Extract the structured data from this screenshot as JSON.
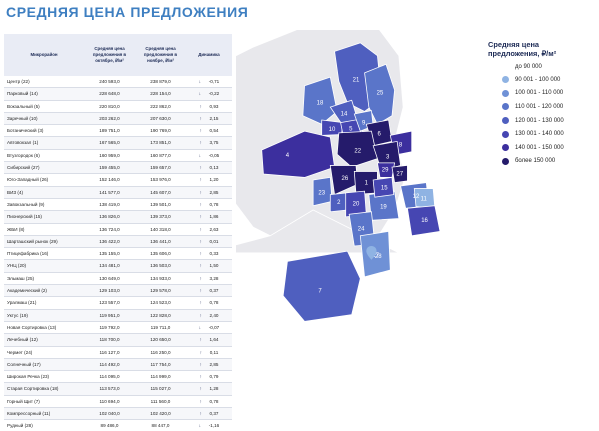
{
  "title": "Средняя цена предложения",
  "table": {
    "headers": {
      "district": "Микрорайон",
      "oct": "Средняя цена предложения в октябре, ₽/м²",
      "nov": "Средняя цена предложения в ноябре, ₽/м²",
      "dyn": "Динамика"
    },
    "rows": [
      {
        "name": "Центр (22)",
        "oct": "240 593,0",
        "nov": "238 879,0",
        "arrow": "↓",
        "dyn": "-0,71"
      },
      {
        "name": "Парковый (14)",
        "oct": "228 648,0",
        "nov": "228 154,0",
        "arrow": "↓",
        "dyn": "-0,22"
      },
      {
        "name": "Вокзальный (5)",
        "oct": "220 810,0",
        "nov": "222 862,0",
        "arrow": "↑",
        "dyn": "0,93"
      },
      {
        "name": "Заречный (10)",
        "oct": "203 262,0",
        "nov": "207 630,0",
        "arrow": "↑",
        "dyn": "2,15"
      },
      {
        "name": "Ботанический (3)",
        "oct": "189 751,0",
        "nov": "190 769,0",
        "arrow": "↑",
        "dyn": "0,54"
      },
      {
        "name": "Автовокзал (1)",
        "oct": "167 565,0",
        "nov": "173 851,0",
        "arrow": "↑",
        "dyn": "3,75"
      },
      {
        "name": "Втузгородок (6)",
        "oct": "160 959,0",
        "nov": "160 877,0",
        "arrow": "↓",
        "dyn": "-0,05"
      },
      {
        "name": "Сибирский (27)",
        "oct": "159 455,0",
        "nov": "159 657,0",
        "arrow": "↑",
        "dyn": "0,13"
      },
      {
        "name": "Юго-Западный (26)",
        "oct": "152 146,0",
        "nov": "153 976,0",
        "arrow": "↑",
        "dyn": "1,20"
      },
      {
        "name": "ВИЗ (4)",
        "oct": "141 577,0",
        "nov": "145 607,0",
        "arrow": "↑",
        "dyn": "2,85"
      },
      {
        "name": "Завокзальный (9)",
        "oct": "138 419,0",
        "nov": "139 501,0",
        "arrow": "↑",
        "dyn": "0,78"
      },
      {
        "name": "Пионерский (15)",
        "oct": "136 826,0",
        "nov": "139 373,0",
        "arrow": "↑",
        "dyn": "1,86"
      },
      {
        "name": "ЖБИ (8)",
        "oct": "136 724,0",
        "nov": "140 318,0",
        "arrow": "↑",
        "dyn": "2,63"
      },
      {
        "name": "Шарташский рынок (29)",
        "oct": "136 422,0",
        "nov": "136 441,0",
        "arrow": "↑",
        "dyn": "0,01"
      },
      {
        "name": "Птицефабрика (16)",
        "oct": "135 155,0",
        "nov": "135 606,0",
        "arrow": "↑",
        "dyn": "0,33"
      },
      {
        "name": "УНЦ (20)",
        "oct": "134 481,0",
        "nov": "136 503,0",
        "arrow": "↑",
        "dyn": "1,50"
      },
      {
        "name": "Эльмаш (25)",
        "oct": "130 649,0",
        "nov": "134 933,0",
        "arrow": "↑",
        "dyn": "3,28"
      },
      {
        "name": "Академический (2)",
        "oct": "129 103,0",
        "nov": "129 578,0",
        "arrow": "↑",
        "dyn": "0,37"
      },
      {
        "name": "Уралмаш (21)",
        "oct": "123 557,0",
        "nov": "124 523,0",
        "arrow": "↑",
        "dyn": "0,78"
      },
      {
        "name": "Уктус (19)",
        "oct": "119 951,0",
        "nov": "122 828,0",
        "arrow": "↑",
        "dyn": "2,40"
      },
      {
        "name": "Новая Сортировка (13)",
        "oct": "119 792,0",
        "nov": "119 711,0",
        "arrow": "↓",
        "dyn": "-0,07"
      },
      {
        "name": "Лечебный (12)",
        "oct": "118 700,0",
        "nov": "120 650,0",
        "arrow": "↑",
        "dyn": "1,64"
      },
      {
        "name": "Чермет (24)",
        "oct": "116 127,0",
        "nov": "116 250,0",
        "arrow": "↑",
        "dyn": "0,11"
      },
      {
        "name": "Солнечный (17)",
        "oct": "114 492,0",
        "nov": "117 754,0",
        "arrow": "↑",
        "dyn": "2,85"
      },
      {
        "name": "Широкая Речка (23)",
        "oct": "114 095,0",
        "nov": "114 999,0",
        "arrow": "↑",
        "dyn": "0,79"
      },
      {
        "name": "Старая Сортировка (18)",
        "oct": "113 573,0",
        "nov": "115 027,0",
        "arrow": "↑",
        "dyn": "1,28"
      },
      {
        "name": "Горный Щит (7)",
        "oct": "110 694,0",
        "nov": "111 560,0",
        "arrow": "↑",
        "dyn": "0,78"
      },
      {
        "name": "Компрессорный (11)",
        "oct": "102 040,0",
        "nov": "102 420,0",
        "arrow": "↑",
        "dyn": "0,37"
      },
      {
        "name": "Рудный (28)",
        "oct": "89 486,0",
        "nov": "88 447,0",
        "arrow": "↓",
        "dyn": "-1,16"
      }
    ]
  },
  "legend": {
    "title_line1": "Средняя цена",
    "title_line2": "предложения, ₽/м²",
    "items": [
      {
        "label": "до 90 000",
        "color": ""
      },
      {
        "label": "90 001 - 100 000",
        "color": "#8fb3e3"
      },
      {
        "label": "100 001 - 110 000",
        "color": "#6f91d6"
      },
      {
        "label": "110 001 - 120 000",
        "color": "#5a75c9"
      },
      {
        "label": "120 001 - 130 000",
        "color": "#4f5fbf"
      },
      {
        "label": "130 001 - 140 000",
        "color": "#4646b2"
      },
      {
        "label": "140 001 - 150 000",
        "color": "#3c2f9e"
      },
      {
        "label": "более 150 000",
        "color": "#251b6b"
      }
    ]
  },
  "map": {
    "colors": {
      "background_land": "#e8e8ec",
      "c90": "#8fb3e3",
      "c100": "#6f91d6",
      "c110": "#5a75c9",
      "c120": "#4f5fbf",
      "c130": "#4646b2",
      "c140": "#3c2f9e",
      "c150": "#251b6b",
      "border": "#ffffff"
    },
    "district_numbers": [
      "21",
      "25",
      "18",
      "14",
      "10",
      "5",
      "9",
      "6",
      "22",
      "8",
      "4",
      "3",
      "29",
      "27",
      "26",
      "1",
      "12",
      "11",
      "23",
      "2",
      "20",
      "19",
      "15",
      "16",
      "24",
      "17",
      "7",
      "28",
      "13"
    ]
  }
}
